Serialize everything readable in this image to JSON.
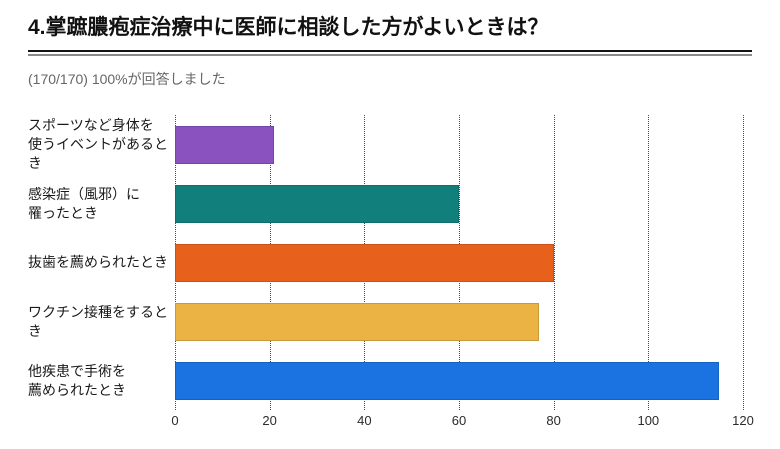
{
  "header": {
    "title": "4.掌蹠膿疱症治療中に医師に相談した方がよいときは？",
    "subtitle": "(170/170) 100%が回答しました"
  },
  "chart_data": {
    "type": "bar",
    "orientation": "horizontal",
    "title": "4.掌蹠膿疱症治療中に医師に相談した方がよいときは？",
    "subtitle": "(170/170) 100%が回答しました",
    "categories": [
      "スポーツなど身体を\n使うイベントがあるとき",
      "感染症（風邪）に\n罹ったとき",
      "抜歯を薦められたとき",
      "ワクチン接種をするとき",
      "他疾患で手術を\n薦められたとき"
    ],
    "values": [
      21,
      60,
      80,
      77,
      115
    ],
    "bar_colors": [
      "#8a52bf",
      "#11807d",
      "#e8611c",
      "#eab343",
      "#1a73e0"
    ],
    "xlabel": "",
    "ylabel": "",
    "xlim": [
      0,
      120
    ],
    "xticks": [
      0,
      20,
      40,
      60,
      80,
      100,
      120
    ],
    "grid": "vertical-dotted",
    "legend": false
  },
  "style": {
    "grid_color": "#4a4a4a",
    "tick_label_color": "#2b2b2b",
    "category_label_color": "#1a1a1a",
    "subtitle_color": "#666666",
    "rule_top_color": "#141414",
    "rule_bottom_color": "#8a8a8a"
  }
}
